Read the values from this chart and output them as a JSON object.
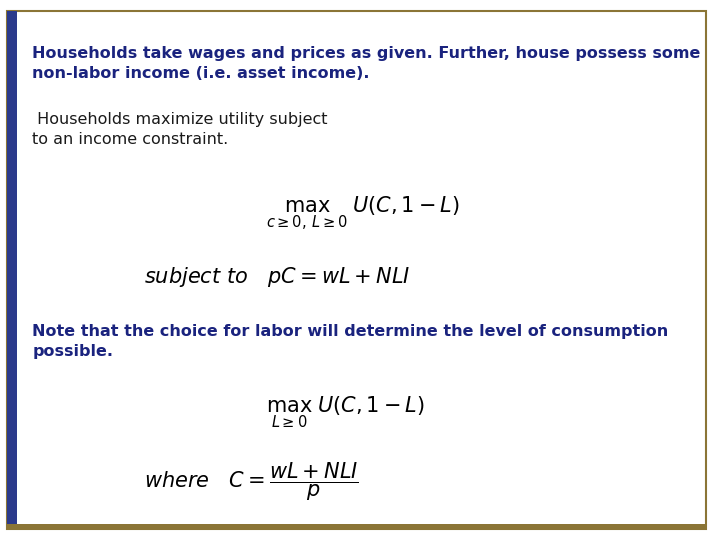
{
  "background_color": "#ffffff",
  "border_color": "#8B7536",
  "left_bar_color": "#2B3A8B",
  "text_color_bold": "#1a237e",
  "text_color_normal": "#1a1a1a",
  "para1_bold_line1": "Households take wages and prices as given. Further, house possess some",
  "para1_bold_line2": "non-labor income (i.e. asset income).",
  "para1_normal_line1": " Households maximize utility subject",
  "para1_normal_line2": "to an income constraint.",
  "para2_bold_line1": "Note that the choice for labor will determine the level of consumption",
  "para2_bold_line2": "possible.",
  "fig_width": 7.2,
  "fig_height": 5.4,
  "dpi": 100
}
